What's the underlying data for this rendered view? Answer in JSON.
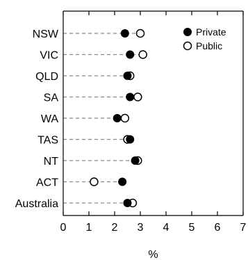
{
  "chart_data": {
    "type": "scatter",
    "style": "dot-plot",
    "xlabel": "%",
    "xlim": [
      0,
      7
    ],
    "xticks": [
      "0",
      "1",
      "2",
      "3",
      "4",
      "5",
      "6",
      "7"
    ],
    "grid": false,
    "legend_position": "top-right",
    "categories": [
      "NSW",
      "VIC",
      "QLD",
      "SA",
      "WA",
      "TAS",
      "NT",
      "ACT",
      "Australia"
    ],
    "series": [
      {
        "name": "Private",
        "marker": "filled-circle",
        "color": "#000000",
        "values": [
          2.4,
          2.6,
          2.5,
          2.6,
          2.1,
          2.6,
          2.8,
          2.3,
          2.5
        ]
      },
      {
        "name": "Public",
        "marker": "open-circle",
        "color": "#000000",
        "values": [
          3.0,
          3.1,
          2.6,
          2.9,
          2.4,
          2.5,
          2.9,
          1.2,
          2.7
        ]
      }
    ]
  }
}
